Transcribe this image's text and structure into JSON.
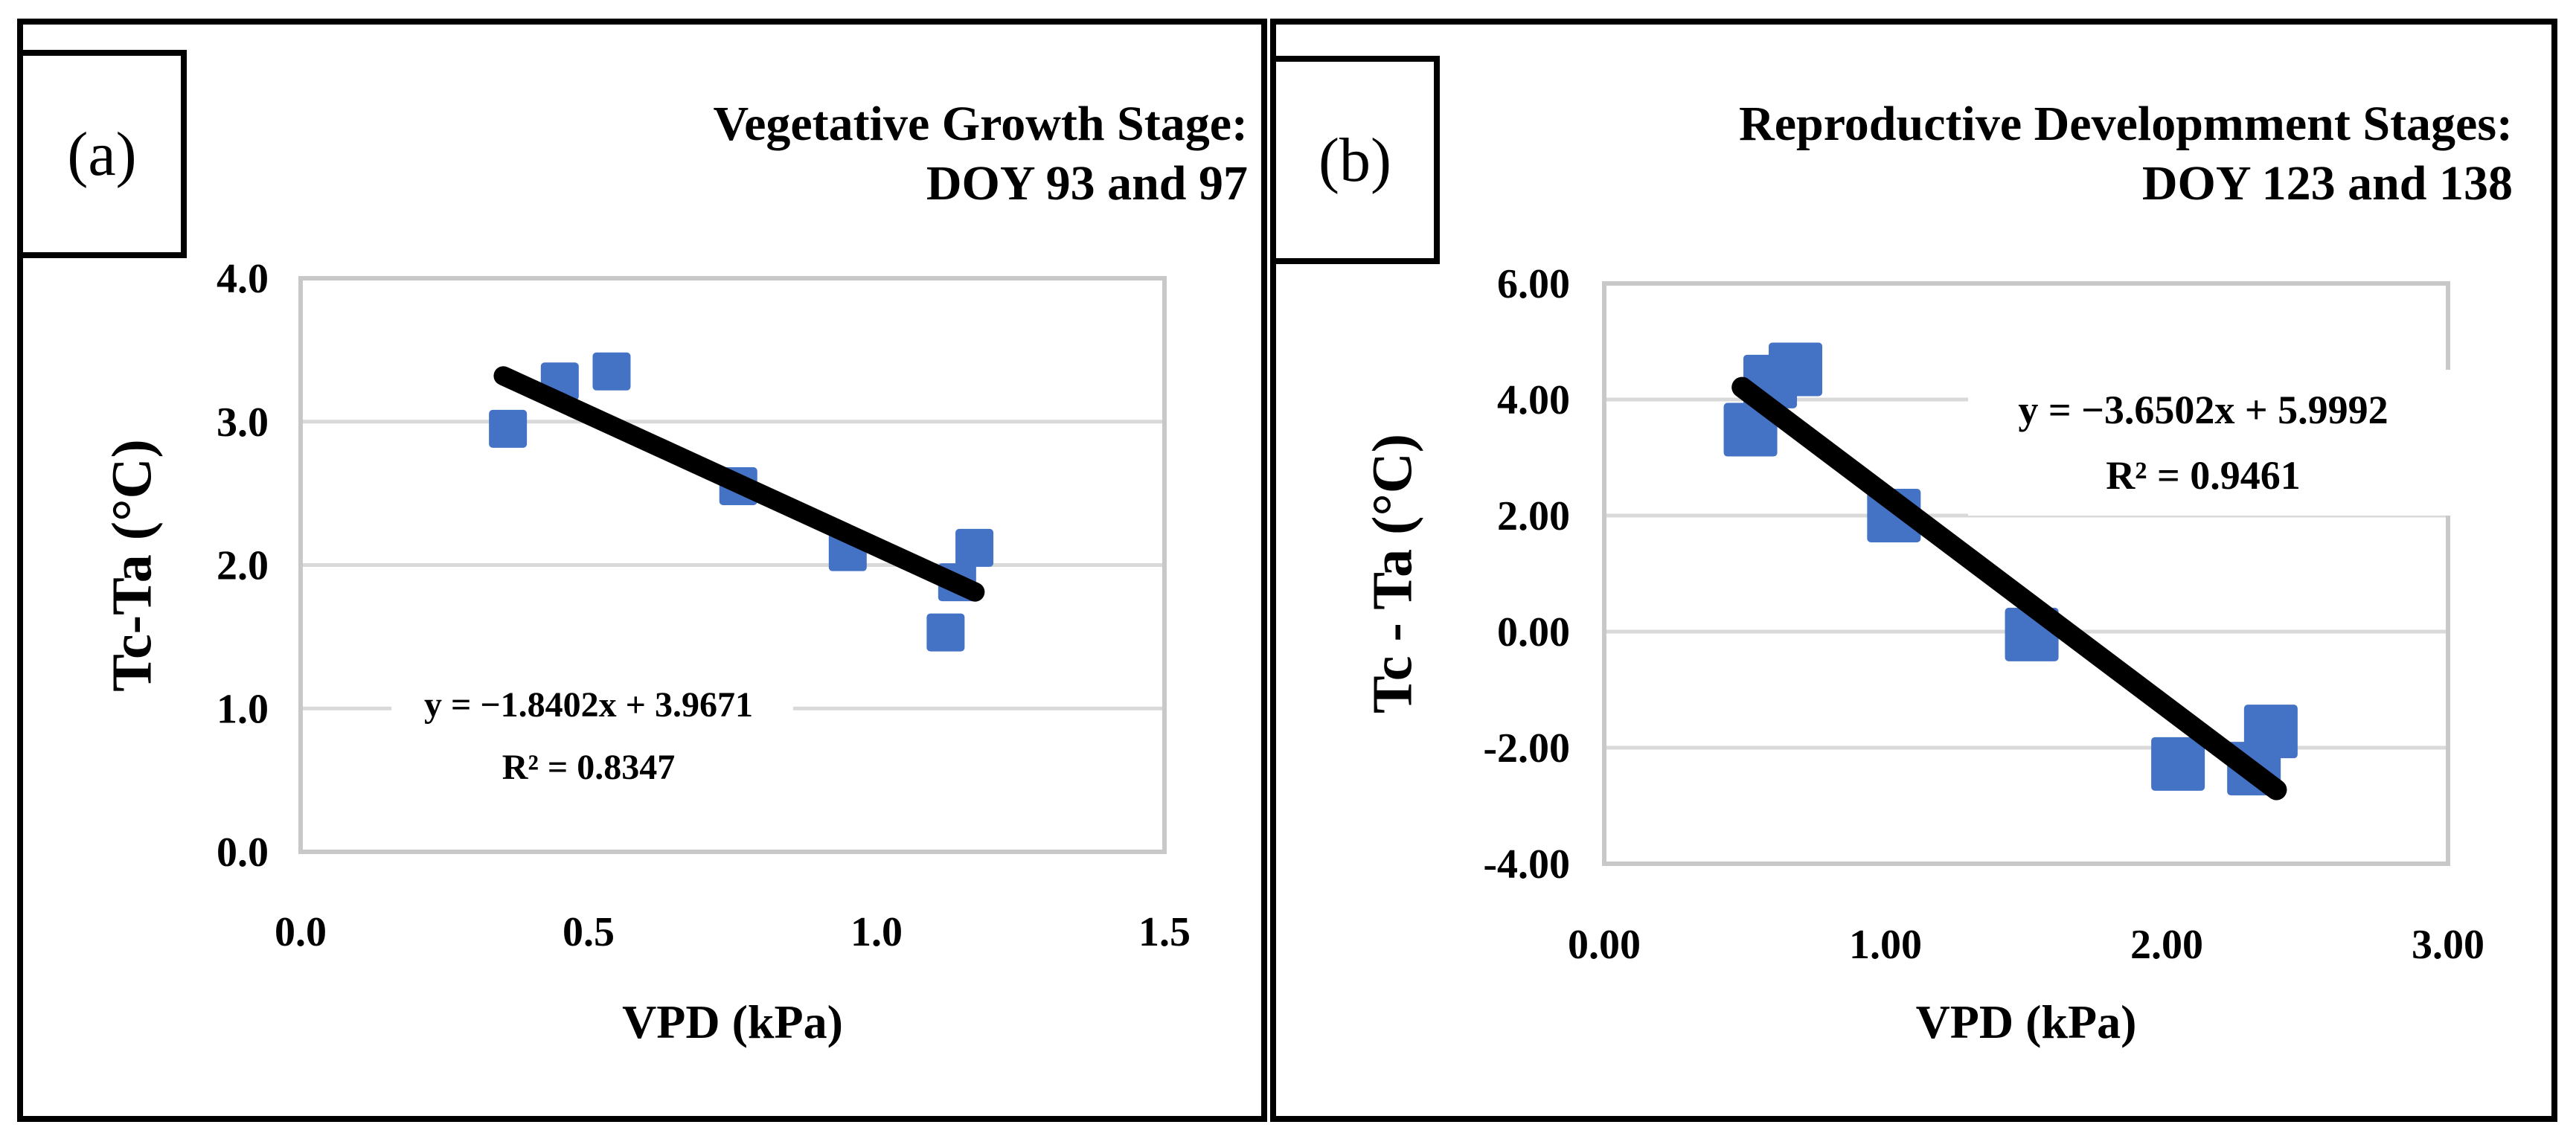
{
  "figure": {
    "background": "#FFFFFF",
    "panels": [
      {
        "corner_label": "(a)",
        "title_line1": "Vegetative Growth Stage:",
        "title_line2": "DOY 93 and 97",
        "x_axis_title": "VPD (kPa)",
        "y_axis_title": "Tc-Ta (°C)"
      },
      {
        "corner_label": "(b)",
        "title_line1": "Reproductive Developmment Stages:",
        "title_line2": "DOY 123 and 138",
        "x_axis_title": "VPD (kPa)",
        "y_axis_title": "Tc - Ta (°C)"
      }
    ]
  },
  "chart_data": [
    {
      "type": "scatter",
      "panel": "(a)",
      "title": "Vegetative Growth Stage: DOY 93 and 97",
      "xlabel": "VPD (kPa)",
      "ylabel": "Tc-Ta (°C)",
      "xlim": [
        0,
        1.5
      ],
      "ylim": [
        0,
        4
      ],
      "grid": true,
      "legend": null,
      "xticks": {
        "values": [
          0,
          0.5,
          1,
          1.5
        ],
        "labels": [
          "0.0",
          "0.5",
          "1.0",
          "1.5"
        ]
      },
      "yticks": {
        "values": [
          4,
          3,
          2,
          1,
          0
        ],
        "labels": [
          "4.0",
          "3.0",
          "2.0",
          "1.0",
          "0.0"
        ]
      },
      "points": [
        [
          0.36,
          2.95
        ],
        [
          0.45,
          3.28
        ],
        [
          0.54,
          3.35
        ],
        [
          0.76,
          2.55
        ],
        [
          0.95,
          2.09
        ],
        [
          1.12,
          1.53
        ],
        [
          1.14,
          1.88
        ],
        [
          1.17,
          2.12
        ]
      ],
      "trendline": {
        "slope": -1.8402,
        "intercept": 3.9671,
        "x_start": 0.352,
        "x_end": 1.171,
        "equation": "y = −1.8402x + 3.9671",
        "r_squared": 0.8347,
        "r_squared_label": "R² = 0.8347"
      },
      "marker": {
        "shape": "square",
        "size": 51,
        "color": "#4472C4"
      },
      "colors": {
        "gridline": "#D9D9D9",
        "plot_border": "#C8C8C8",
        "trendline": "#000000"
      }
    },
    {
      "type": "scatter",
      "panel": "(b)",
      "title": "Reproductive Developmment Stages: DOY 123 and 138",
      "xlabel": "VPD (kPa)",
      "ylabel": "Tc - Ta (°C)",
      "xlim": [
        0,
        3
      ],
      "ylim": [
        -4,
        6
      ],
      "grid": true,
      "legend": null,
      "xticks": {
        "values": [
          0,
          1,
          2,
          3
        ],
        "labels": [
          "0.00",
          "1.00",
          "2.00",
          "3.00"
        ]
      },
      "yticks": {
        "values": [
          6,
          4,
          2,
          0,
          -2,
          -4
        ],
        "labels": [
          "6.00",
          "4.00",
          "2.00",
          "0.00",
          "-2.00",
          "-4.00"
        ]
      },
      "points": [
        [
          0.52,
          3.48
        ],
        [
          0.59,
          4.31
        ],
        [
          0.68,
          4.52
        ],
        [
          1.03,
          2.0
        ],
        [
          1.52,
          -0.05
        ],
        [
          2.04,
          -2.28
        ],
        [
          2.31,
          -2.36
        ],
        [
          2.37,
          -1.72
        ]
      ],
      "trendline": {
        "slope": -3.6502,
        "intercept": 5.9992,
        "x_start": 0.49,
        "x_end": 2.39,
        "equation": "y = −3.6502x + 5.9992",
        "r_squared": 0.9461,
        "r_squared_label": "R² = 0.9461"
      },
      "marker": {
        "shape": "square",
        "size": 72,
        "color": "#4472C4"
      },
      "colors": {
        "gridline": "#D9D9D9",
        "plot_border": "#C8C8C8",
        "trendline": "#000000"
      }
    }
  ]
}
